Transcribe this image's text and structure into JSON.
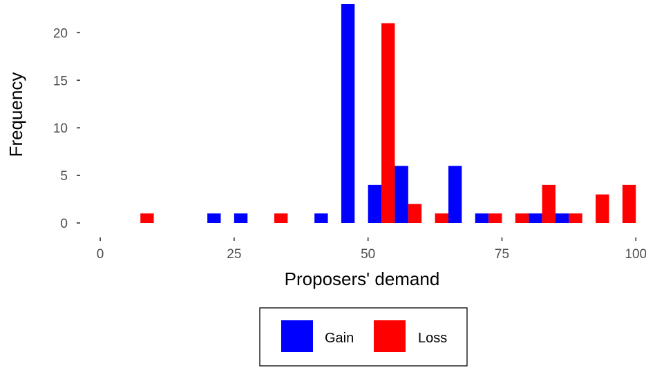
{
  "colors": {
    "gain": "#0000ff",
    "loss": "#ff0000",
    "tick": "#333333"
  },
  "chart_data": {
    "type": "bar",
    "xlabel": "Proposers' demand",
    "ylabel": "Frequency",
    "xlim": [
      -3.75,
      101.25
    ],
    "ylim": [
      0,
      23
    ],
    "x_ticks": [
      0,
      25,
      50,
      75,
      100
    ],
    "y_ticks": [
      0,
      5,
      10,
      15,
      20
    ],
    "grid": false,
    "legend_position": "bottom",
    "bin_width": 5,
    "series": [
      {
        "name": "Gain",
        "color": "#0000ff",
        "bins": [
          22.5,
          27.5,
          42.5,
          47.5,
          52.5,
          57.5,
          67.5,
          72.5,
          82.5,
          87.5
        ],
        "values": [
          1,
          1,
          1,
          23,
          4,
          6,
          6,
          1,
          1,
          1
        ]
      },
      {
        "name": "Loss",
        "color": "#ff0000",
        "bins": [
          7.5,
          32.5,
          52.5,
          57.5,
          62.5,
          72.5,
          77.5,
          82.5,
          87.5,
          92.5,
          97.5
        ],
        "values": [
          1,
          1,
          21,
          2,
          1,
          1,
          1,
          4,
          1,
          3,
          4
        ]
      }
    ]
  }
}
